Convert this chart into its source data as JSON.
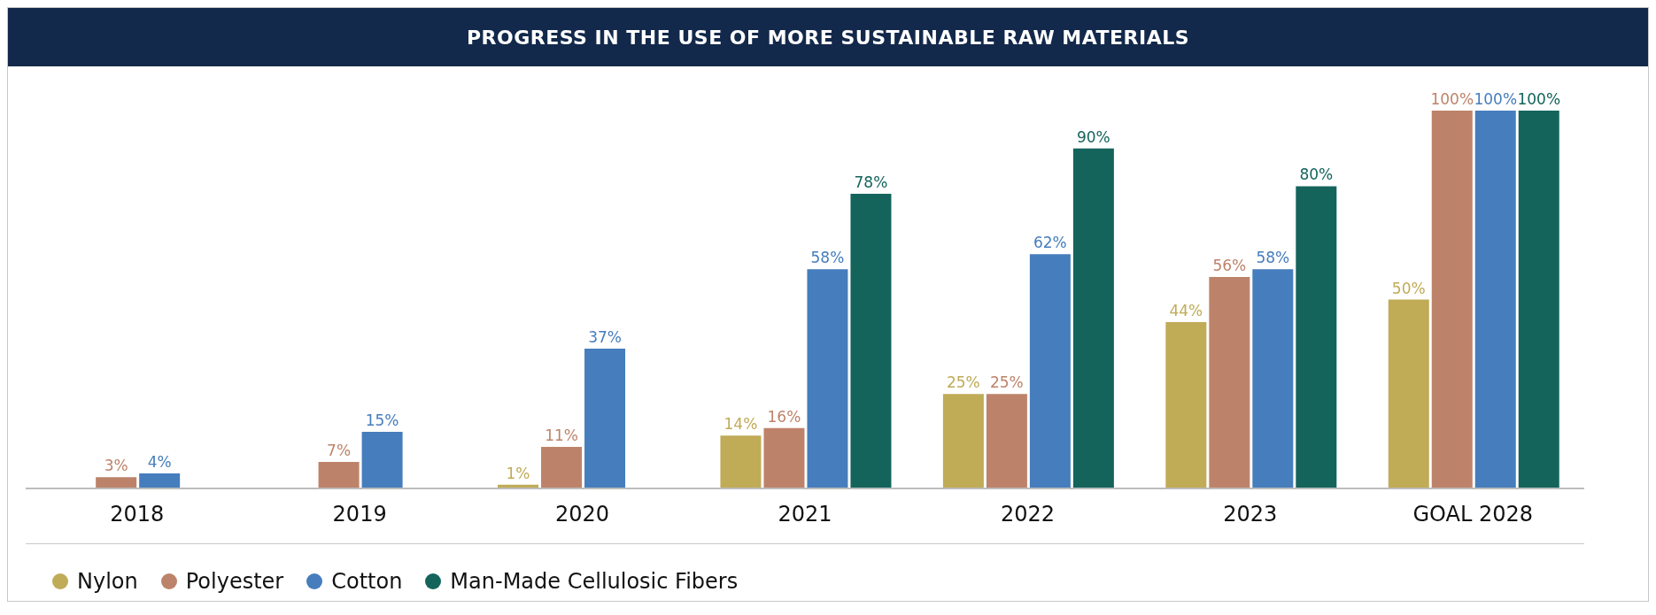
{
  "chart_data": {
    "type": "bar",
    "title": "PROGRESS IN THE USE OF MORE SUSTAINABLE RAW MATERIALS",
    "categories": [
      "2018",
      "2019",
      "2020",
      "2021",
      "2022",
      "2023",
      "GOAL 2028"
    ],
    "series": [
      {
        "name": "Nylon",
        "color": "#c0ab57",
        "values": [
          null,
          null,
          1,
          14,
          25,
          44,
          50
        ],
        "value_labels": [
          null,
          null,
          "1%",
          "14%",
          "25%",
          "44%",
          "50%"
        ]
      },
      {
        "name": "Polyester",
        "color": "#bd836a",
        "values": [
          3,
          7,
          11,
          16,
          25,
          56,
          100
        ],
        "value_labels": [
          "3%",
          "7%",
          "11%",
          "16%",
          "25%",
          "56%",
          "100%"
        ]
      },
      {
        "name": "Cotton",
        "color": "#467dbd",
        "values": [
          4,
          15,
          37,
          58,
          62,
          58,
          100
        ],
        "value_labels": [
          "4%",
          "15%",
          "37%",
          "58%",
          "62%",
          "58%",
          "100%"
        ]
      },
      {
        "name": "Man-Made Cellulosic Fibers",
        "color": "#14645c",
        "values": [
          null,
          null,
          null,
          78,
          90,
          80,
          100
        ],
        "value_labels": [
          null,
          null,
          null,
          "78%",
          "90%",
          "80%",
          "100%"
        ]
      }
    ],
    "legend": "bottom left"
  }
}
